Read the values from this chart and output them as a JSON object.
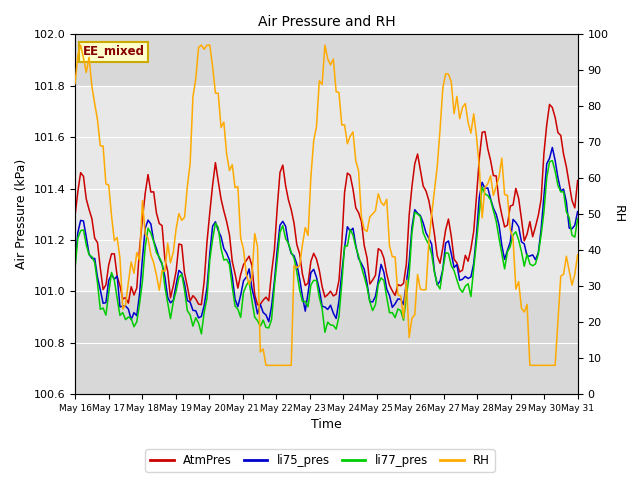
{
  "title": "Air Pressure and RH",
  "xlabel": "Time",
  "ylabel_left": "Air Pressure (kPa)",
  "ylabel_right": "RH",
  "annotation": "EE_mixed",
  "ylim_left": [
    100.6,
    102.0
  ],
  "ylim_right": [
    0,
    100
  ],
  "yticks_left": [
    100.6,
    100.8,
    101.0,
    101.2,
    101.4,
    101.6,
    101.8,
    102.0
  ],
  "yticks_right": [
    0,
    10,
    20,
    30,
    40,
    50,
    60,
    70,
    80,
    90,
    100
  ],
  "xticklabels": [
    "May 16",
    "May 17",
    "May 18",
    "May 19",
    "May 20",
    "May 21",
    "May 22",
    "May 23",
    "May 24",
    "May 25",
    "May 26",
    "May 27",
    "May 28",
    "May 29",
    "May 30",
    "May 31"
  ],
  "colors": {
    "AtmPres": "#cc0000",
    "li75_pres": "#0000cc",
    "li77_pres": "#00cc00",
    "RH": "#ffaa00"
  },
  "shaded_band_light": [
    101.0,
    101.8
  ],
  "bg_outer": "#d8d8d8",
  "bg_inner": "#e8e8e8",
  "legend_entries": [
    "AtmPres",
    "li75_pres",
    "li77_pres",
    "RH"
  ]
}
